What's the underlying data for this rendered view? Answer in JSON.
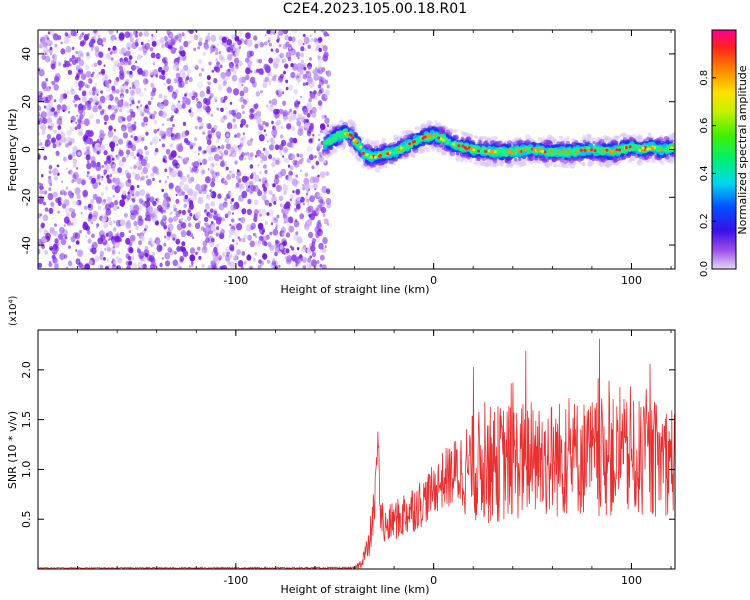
{
  "title": "C2E4.2023.105.00.18.R01",
  "chart_data": [
    {
      "type": "heatmap",
      "xlabel": "Height of straight line (km)",
      "ylabel": "Frequency (Hz)",
      "xlim": [
        -200,
        122
      ],
      "ylim": [
        -50,
        50
      ],
      "x_ticks": [
        "-100",
        "0",
        "100"
      ],
      "y_ticks": [
        "-40",
        "-20",
        "0",
        "20",
        "40"
      ],
      "noise_region_x": [
        -200,
        -53
      ],
      "ridge": {
        "x": [
          -55,
          -50,
          -45,
          -42,
          -40,
          -37,
          -35,
          -30,
          -25,
          -20,
          -15,
          -10,
          -5,
          0,
          3,
          6,
          10,
          15,
          20,
          30,
          40,
          50,
          60,
          70,
          80,
          90,
          95,
          100,
          105,
          110,
          115,
          122
        ],
        "freq": [
          2,
          5,
          7,
          6,
          4,
          1,
          -2,
          -3,
          -2,
          -1,
          1,
          3,
          5,
          6,
          5,
          4,
          2,
          1,
          0,
          -1,
          -1,
          0,
          -1,
          -1,
          0,
          -1,
          0,
          1,
          0,
          1,
          0,
          1
        ]
      },
      "colorbar": {
        "label": "Normalized spectral amplitude",
        "range": [
          0,
          1
        ],
        "ticks": [
          "0.0",
          "0.2",
          "0.4",
          "0.6",
          "0.8"
        ]
      }
    },
    {
      "type": "line",
      "xlabel": "Height of straight line (km)",
      "ylabel": "SNR (10 * v/v)",
      "y_multiplier_label": "(x10⁴)",
      "xlim": [
        -200,
        122
      ],
      "ylim": [
        0,
        2.4
      ],
      "x_ticks": [
        "-100",
        "0",
        "100"
      ],
      "y_ticks": [
        "0.5",
        "1.0",
        "1.5",
        "2.0"
      ],
      "color": "#e83030",
      "envelope": {
        "x": [
          -200,
          -40,
          -37,
          -35,
          -33,
          -30,
          -28,
          -27,
          -25,
          -22,
          -20,
          -17,
          -15,
          -10,
          -5,
          0,
          5,
          10,
          15,
          20,
          30,
          40,
          50,
          60,
          70,
          80,
          90,
          100,
          110,
          122
        ],
        "base": [
          0.01,
          0.01,
          0.05,
          0.15,
          0.2,
          0.6,
          1.35,
          0.6,
          0.4,
          0.45,
          0.5,
          0.5,
          0.55,
          0.62,
          0.68,
          0.8,
          0.9,
          0.95,
          1.0,
          1.02,
          1.05,
          1.08,
          1.1,
          1.1,
          1.12,
          1.12,
          1.12,
          1.1,
          1.1,
          1.1
        ],
        "amp": [
          0.005,
          0.01,
          0.05,
          0.1,
          0.15,
          0.25,
          0.1,
          0.25,
          0.2,
          0.2,
          0.2,
          0.22,
          0.25,
          0.25,
          0.25,
          0.25,
          0.3,
          0.35,
          0.45,
          0.55,
          0.6,
          0.6,
          0.6,
          0.6,
          0.6,
          0.6,
          0.6,
          0.6,
          0.6,
          0.55
        ]
      }
    }
  ]
}
